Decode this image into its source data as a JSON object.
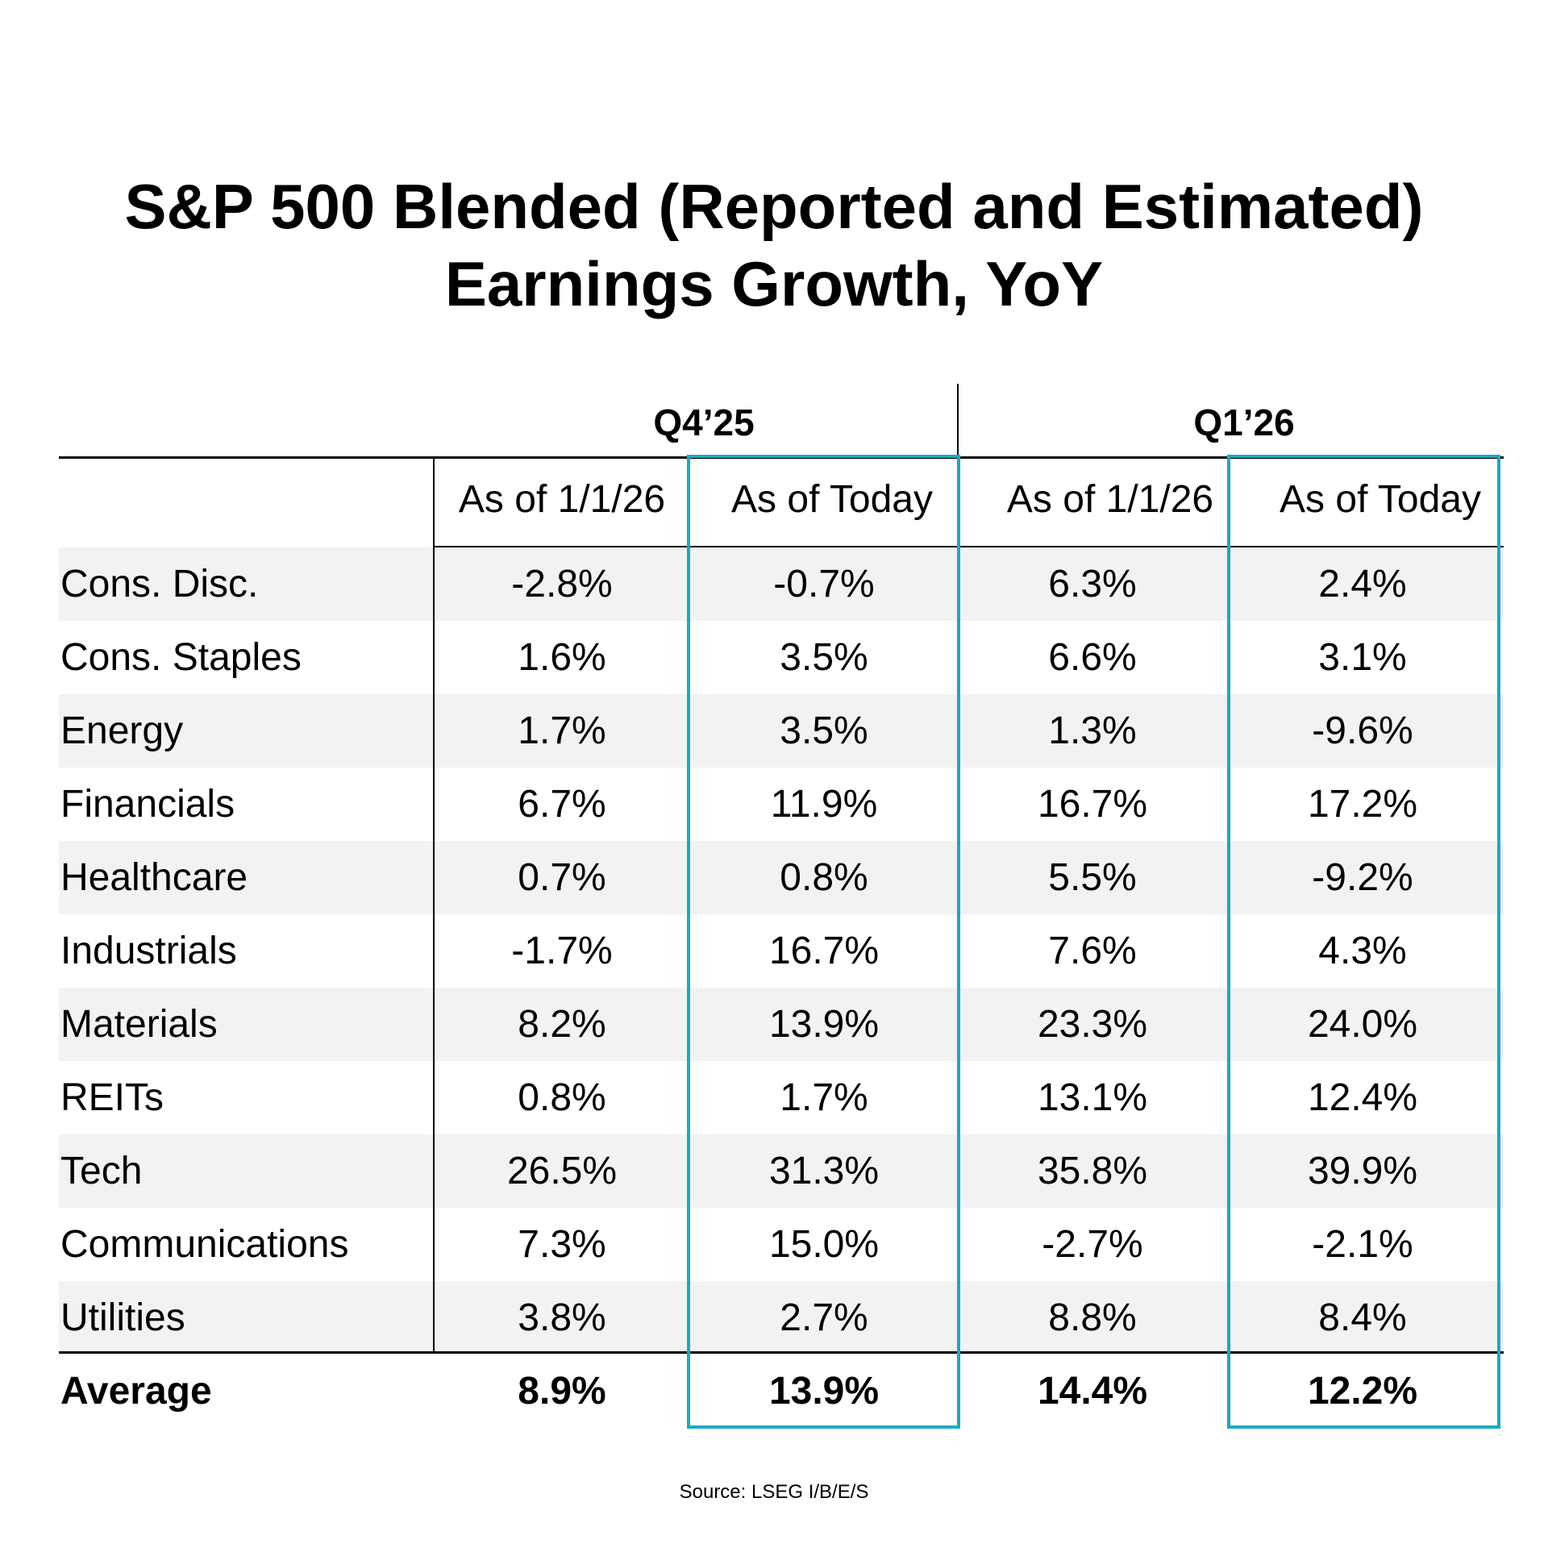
{
  "chart_data": {
    "type": "table",
    "title_lines": [
      "S&P 500 Blended (Reported and Estimated)",
      "Earnings Growth, YoY"
    ],
    "quarters": [
      "Q4’25",
      "Q1’26"
    ],
    "columns": [
      "As of 1/1/26",
      "As of Today",
      "As of 1/1/26",
      "As of Today"
    ],
    "highlighted_columns": [
      "As of Today (Q4’25)",
      "As of Today (Q1’26)"
    ],
    "highlight_color": "#1aa9c6",
    "rows": [
      {
        "label": "Cons. Disc.",
        "values": [
          "-2.8%",
          "-0.7%",
          "6.3%",
          "2.4%"
        ]
      },
      {
        "label": "Cons. Staples",
        "values": [
          "1.6%",
          "3.5%",
          "6.6%",
          "3.1%"
        ]
      },
      {
        "label": "Energy",
        "values": [
          "1.7%",
          "3.5%",
          "1.3%",
          "-9.6%"
        ]
      },
      {
        "label": "Financials",
        "values": [
          "6.7%",
          "11.9%",
          "16.7%",
          "17.2%"
        ]
      },
      {
        "label": "Healthcare",
        "values": [
          "0.7%",
          "0.8%",
          "5.5%",
          "-9.2%"
        ]
      },
      {
        "label": "Industrials",
        "values": [
          "-1.7%",
          "16.7%",
          "7.6%",
          "4.3%"
        ]
      },
      {
        "label": "Materials",
        "values": [
          "8.2%",
          "13.9%",
          "23.3%",
          "24.0%"
        ]
      },
      {
        "label": "REITs",
        "values": [
          "0.8%",
          "1.7%",
          "13.1%",
          "12.4%"
        ]
      },
      {
        "label": "Tech",
        "values": [
          "26.5%",
          "31.3%",
          "35.8%",
          "39.9%"
        ]
      },
      {
        "label": "Communications",
        "values": [
          "7.3%",
          "15.0%",
          "-2.7%",
          "-2.1%"
        ]
      },
      {
        "label": "Utilities",
        "values": [
          "3.8%",
          "2.7%",
          "8.8%",
          "8.4%"
        ]
      }
    ],
    "average": {
      "label": "Average",
      "values": [
        "8.9%",
        "13.9%",
        "14.4%",
        "12.2%"
      ]
    },
    "source": "Source: LSEG I/B/E/S"
  }
}
